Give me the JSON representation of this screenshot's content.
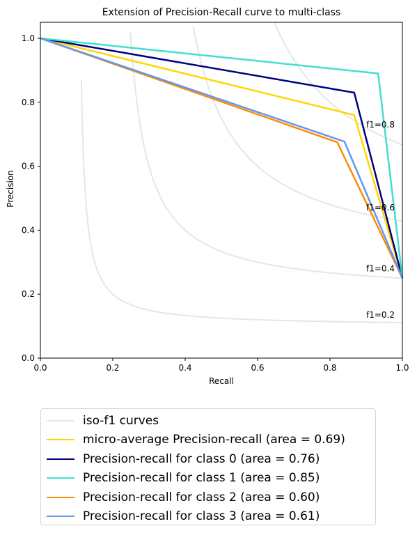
{
  "chart_data": {
    "type": "line",
    "title": "Extension of Precision-Recall curve to multi-class",
    "xlabel": "Recall",
    "ylabel": "Precision",
    "xlim": [
      0.0,
      1.0
    ],
    "ylim": [
      0.0,
      1.05
    ],
    "xticks": [
      "0.0",
      "0.2",
      "0.4",
      "0.6",
      "0.8",
      "1.0"
    ],
    "yticks": [
      "0.0",
      "0.2",
      "0.4",
      "0.6",
      "0.8",
      "1.0"
    ],
    "iso_f1": [
      {
        "f1": 0.2,
        "label": "f1=0.2",
        "label_xy": [
          0.9,
          0.135
        ]
      },
      {
        "f1": 0.4,
        "label": "f1=0.4",
        "label_xy": [
          0.9,
          0.28
        ]
      },
      {
        "f1": 0.6,
        "label": "f1=0.6",
        "label_xy": [
          0.9,
          0.47
        ]
      },
      {
        "f1": 0.8,
        "label": "f1=0.8",
        "label_xy": [
          0.9,
          0.73
        ]
      }
    ],
    "series": [
      {
        "name": "micro-average Precision-recall (area = 0.69)",
        "color": "#ffd700",
        "x": [
          1.0,
          0.867,
          0.0
        ],
        "y": [
          0.25,
          0.76,
          1.0
        ]
      },
      {
        "name": "Precision-recall for class 0 (area = 0.76)",
        "color": "#000080",
        "x": [
          1.0,
          0.867,
          0.0
        ],
        "y": [
          0.25,
          0.83,
          1.0
        ]
      },
      {
        "name": "Precision-recall for class 1 (area = 0.85)",
        "color": "#40e0d0",
        "x": [
          1.0,
          0.933,
          0.0
        ],
        "y": [
          0.25,
          0.89,
          1.0
        ]
      },
      {
        "name": "Precision-recall for class 2 (area = 0.60)",
        "color": "#ff8c00",
        "x": [
          1.0,
          0.82,
          0.0
        ],
        "y": [
          0.25,
          0.675,
          1.0
        ]
      },
      {
        "name": "Precision-recall for class 3 (area = 0.61)",
        "color": "#6495ed",
        "x": [
          1.0,
          0.84,
          0.0
        ],
        "y": [
          0.25,
          0.677,
          1.0
        ]
      }
    ],
    "legend": {
      "placement": "below",
      "items": [
        {
          "label": "iso-f1 curves",
          "color": "#e6e6e6"
        },
        {
          "label": "micro-average Precision-recall (area = 0.69)",
          "color": "#ffd700"
        },
        {
          "label": "Precision-recall for class 0 (area = 0.76)",
          "color": "#000080"
        },
        {
          "label": "Precision-recall for class 1 (area = 0.85)",
          "color": "#40e0d0"
        },
        {
          "label": "Precision-recall for class 2 (area = 0.60)",
          "color": "#ff8c00"
        },
        {
          "label": "Precision-recall for class 3 (area = 0.61)",
          "color": "#6495ed"
        }
      ]
    }
  }
}
